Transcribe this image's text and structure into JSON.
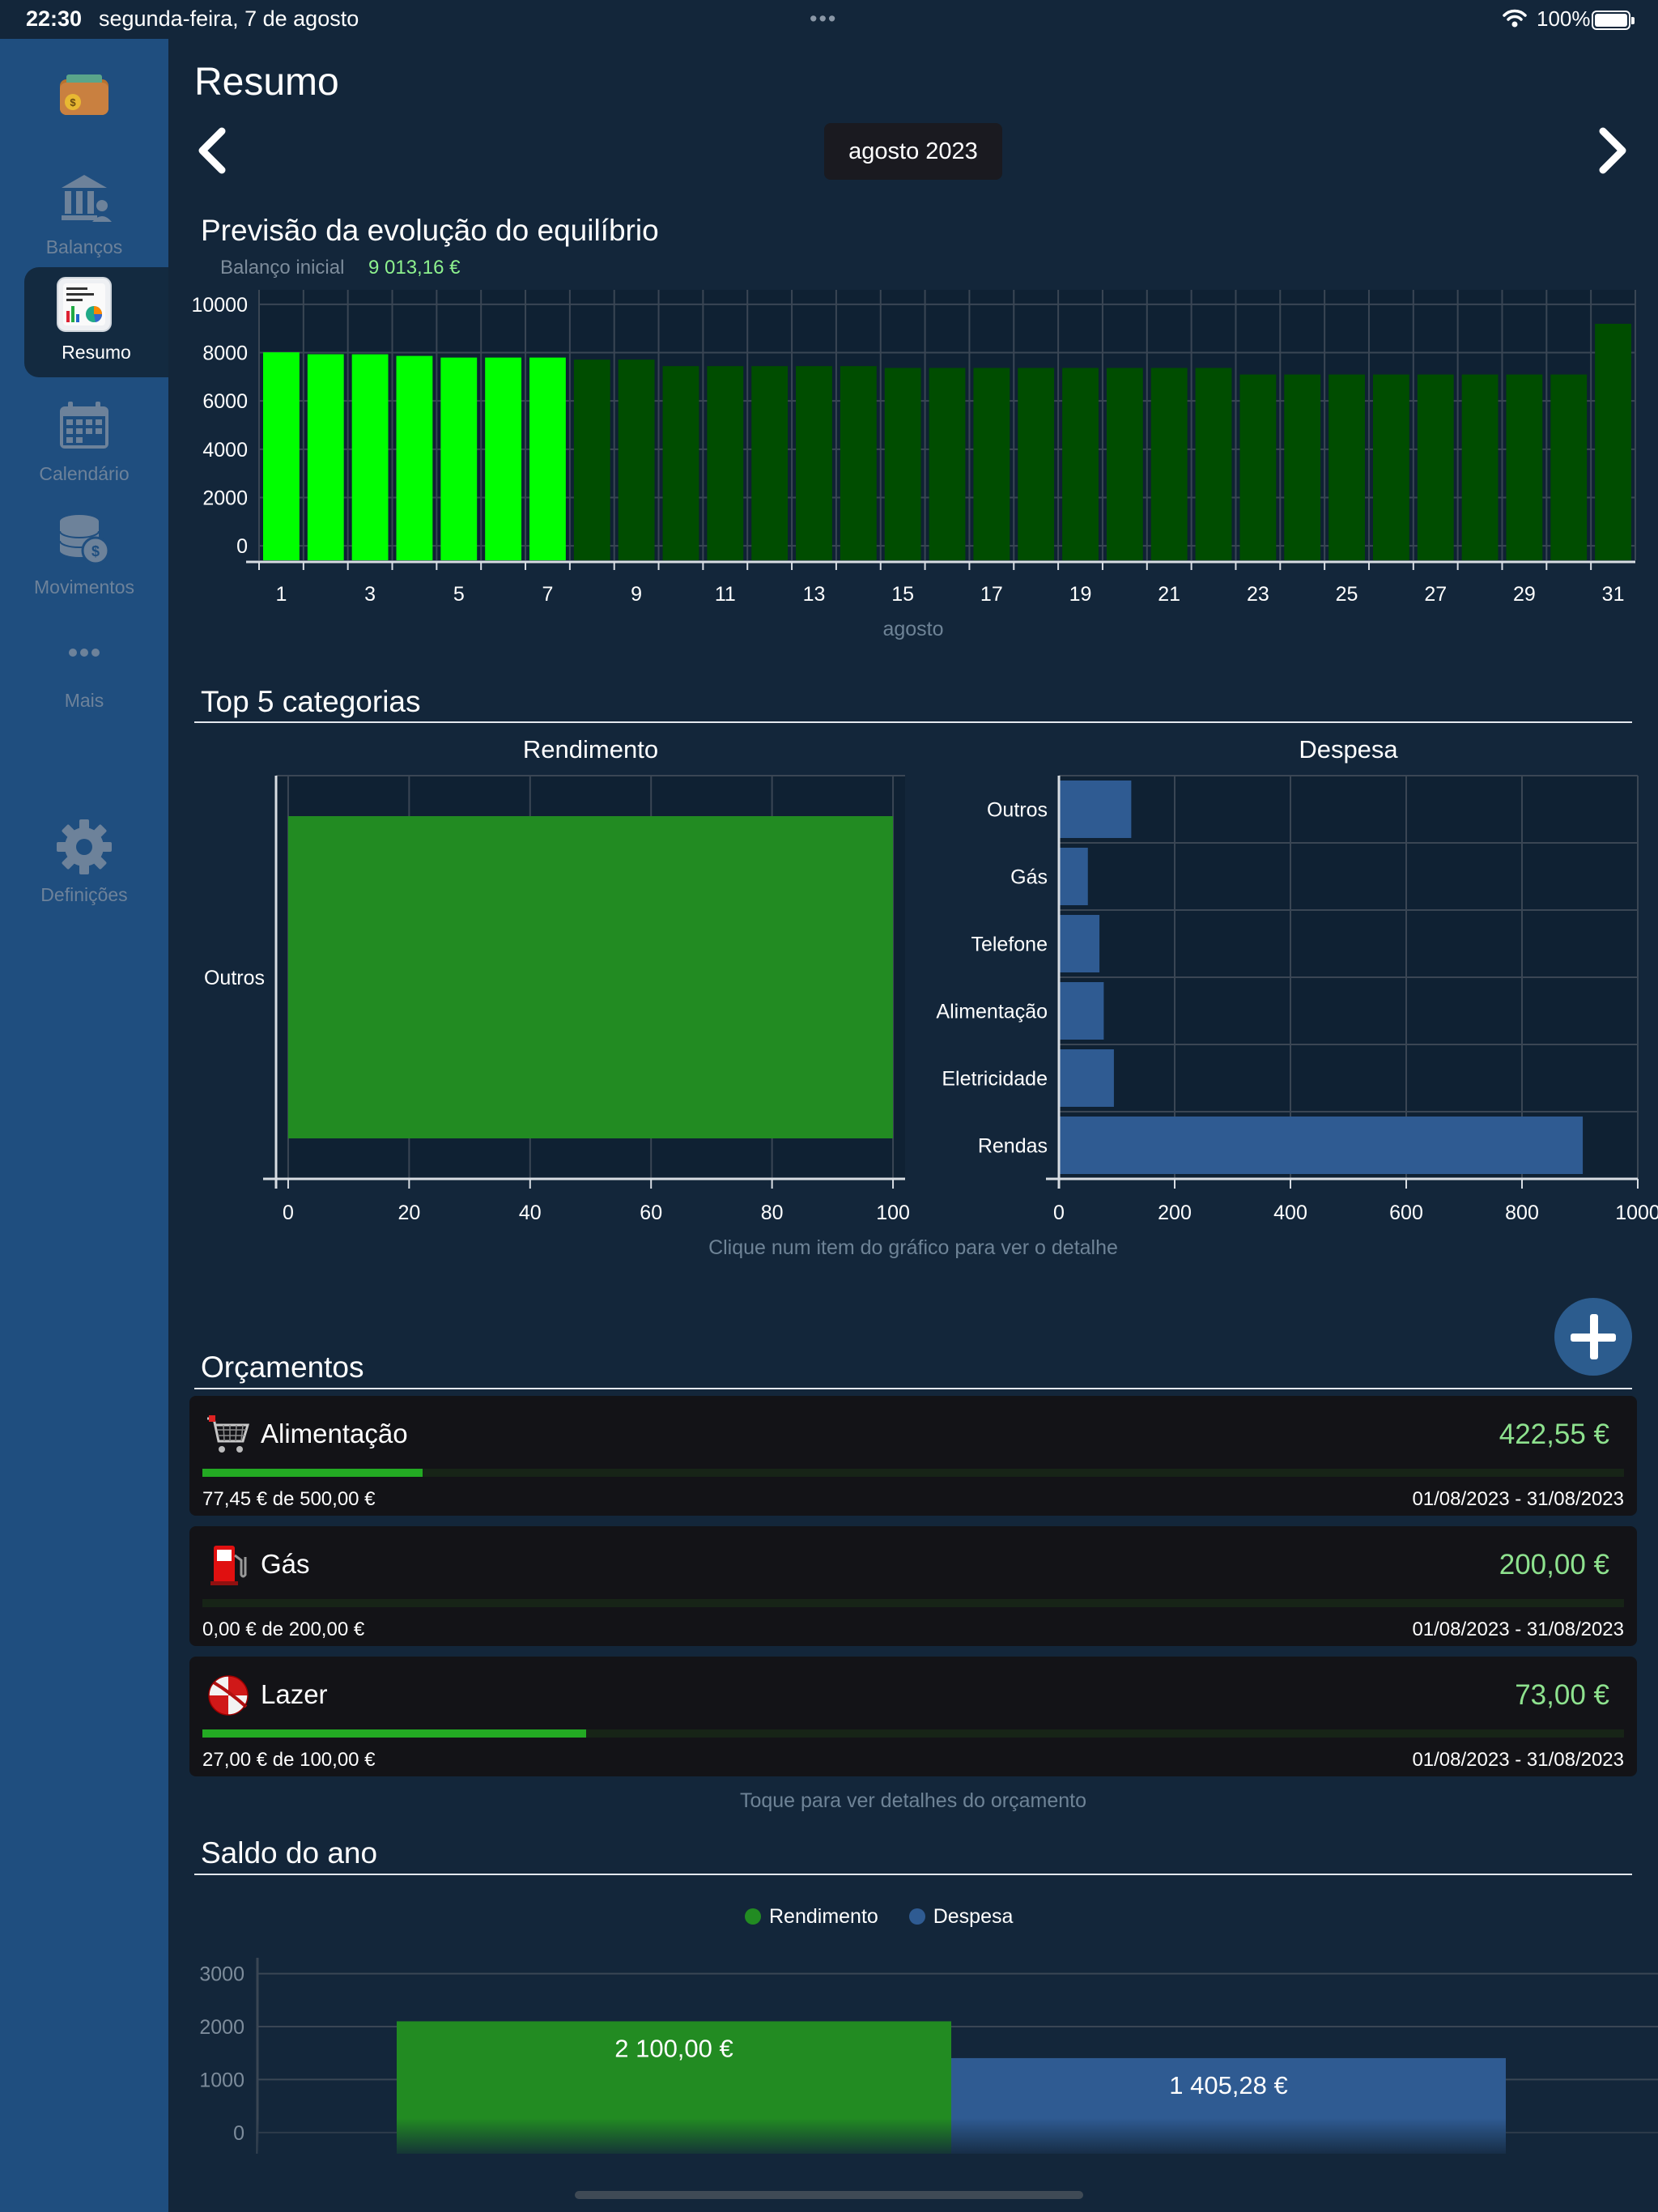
{
  "status_bar": {
    "time": "22:30",
    "date": "segunda-feira, 7 de agosto",
    "battery": "100%"
  },
  "sidebar": {
    "items": [
      {
        "label": "",
        "icon": "wallet-icon"
      },
      {
        "label": "Balanços",
        "icon": "bank-icon"
      },
      {
        "label": "Resumo",
        "icon": "summary-icon",
        "active": true
      },
      {
        "label": "Calendário",
        "icon": "calendar-icon"
      },
      {
        "label": "Movimentos",
        "icon": "coins-icon"
      },
      {
        "label": "Mais",
        "icon": "more-icon"
      },
      {
        "label": "Definições",
        "icon": "gear-icon"
      }
    ]
  },
  "header": {
    "title": "Resumo",
    "month": "agosto 2023"
  },
  "balance_forecast": {
    "title": "Previsão da evolução do equilíbrio",
    "initial_label": "Balanço inicial",
    "initial_value": "9 013,16 €"
  },
  "top5": {
    "title": "Top 5 categorias",
    "hint": "Clique num item do gráfico para ver o detalhe"
  },
  "budgets": {
    "title": "Orçamentos",
    "hint": "Toque para ver detalhes do orçamento",
    "items": [
      {
        "name": "Alimentação",
        "remaining": "422,55 €",
        "spent": "77,45 € de 500,00 €",
        "period": "01/08/2023 - 31/08/2023",
        "progress": 0.155,
        "icon": "shopping-cart-icon"
      },
      {
        "name": "Gás",
        "remaining": "200,00 €",
        "spent": "0,00 € de 200,00 €",
        "period": "01/08/2023 - 31/08/2023",
        "progress": 0.0,
        "icon": "fuel-pump-icon"
      },
      {
        "name": "Lazer",
        "remaining": "73,00 €",
        "spent": "27,00 € de 100,00 €",
        "period": "01/08/2023 - 31/08/2023",
        "progress": 0.27,
        "icon": "beach-ball-icon"
      }
    ]
  },
  "year_balance": {
    "title": "Saldo do ano",
    "legend": [
      "Rendimento",
      "Despesa"
    ]
  },
  "colors": {
    "background": "#13263a",
    "sidebar": "#1f4e7f",
    "income_green": "#228b22",
    "expense_blue": "#2f5b92",
    "bright_green": "#00ff00",
    "dark_green": "#004d00",
    "positive_text": "#8ee28e"
  },
  "chart_data": [
    {
      "type": "bar",
      "title": "Previsão da evolução do equilíbrio",
      "xlabel": "agosto",
      "ylabel": "",
      "x": [
        1,
        2,
        3,
        4,
        5,
        6,
        7,
        8,
        9,
        10,
        11,
        12,
        13,
        14,
        15,
        16,
        17,
        18,
        19,
        20,
        21,
        22,
        23,
        24,
        25,
        26,
        27,
        28,
        29,
        30,
        31
      ],
      "xticks": [
        1,
        3,
        5,
        7,
        9,
        11,
        13,
        15,
        17,
        19,
        21,
        23,
        25,
        27,
        29,
        31
      ],
      "values": [
        8013,
        7934,
        7932,
        7864,
        7796,
        7796,
        7796,
        7711,
        7711,
        7442,
        7442,
        7442,
        7442,
        7442,
        7366,
        7366,
        7366,
        7366,
        7366,
        7366,
        7366,
        7366,
        7094,
        7094,
        7094,
        7094,
        7094,
        7094,
        7094,
        7094,
        9194
      ],
      "highlighted_through_day": 7,
      "ylim": [
        -600,
        10600
      ],
      "yticks": [
        0,
        2000,
        4000,
        6000,
        8000,
        10000
      ],
      "grid": true
    },
    {
      "type": "bar",
      "orientation": "horizontal",
      "title": "Rendimento",
      "categories": [
        "Outros"
      ],
      "values": [
        100
      ],
      "xlim": [
        -2,
        102
      ],
      "xticks": [
        0,
        20,
        40,
        60,
        80,
        100
      ],
      "grid": true
    },
    {
      "type": "bar",
      "orientation": "horizontal",
      "title": "Despesa",
      "categories": [
        "Outros",
        "Gás",
        "Telefone",
        "Alimentação",
        "Eletricidade",
        "Rendas"
      ],
      "values": [
        125,
        50,
        70,
        77.45,
        95,
        905
      ],
      "xlim": [
        0,
        1000
      ],
      "xticks": [
        0,
        200,
        400,
        600,
        800,
        1000
      ],
      "grid": true
    },
    {
      "type": "bar",
      "title": "Saldo do ano",
      "categories": [
        ""
      ],
      "series": [
        {
          "name": "Rendimento",
          "values": [
            2100
          ],
          "label": "2 100,00 €"
        },
        {
          "name": "Despesa",
          "values": [
            1405.28
          ],
          "label": "1 405,28 €"
        }
      ],
      "yticks": [
        0,
        1000,
        2000,
        3000
      ],
      "ylim": [
        -400,
        3300
      ],
      "legend": "top-center",
      "grid": true
    }
  ]
}
